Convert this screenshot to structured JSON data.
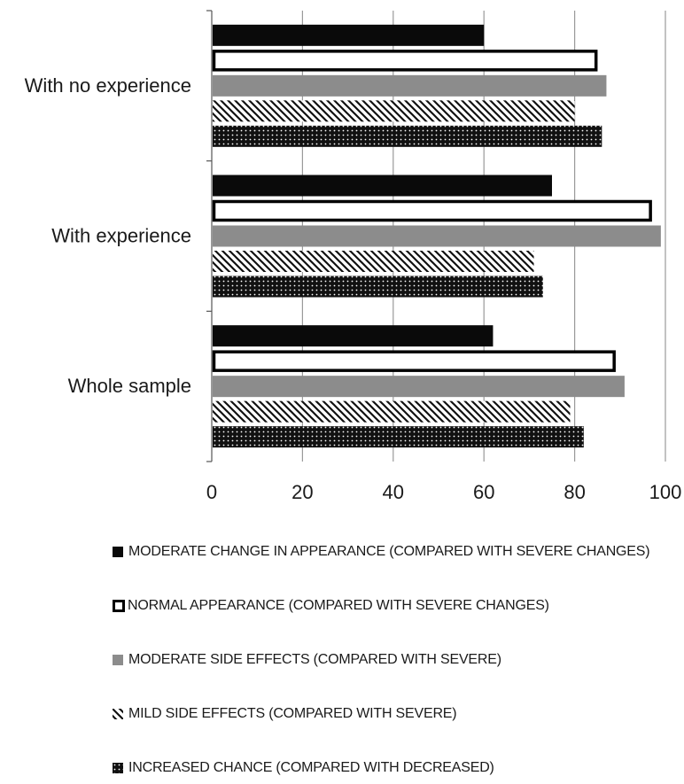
{
  "chart_data": {
    "type": "bar",
    "orientation": "horizontal",
    "categories": [
      "With no experience",
      "With experience",
      "Whole sample"
    ],
    "series": [
      {
        "name": "MODERATE CHANGE IN APPEARANCE (COMPARED WITH SEVERE CHANGES)",
        "values": [
          60,
          75,
          62
        ],
        "fill": "#0a0a0a",
        "pattern": "solid"
      },
      {
        "name": "NORMAL APPEARANCE (COMPARED WITH SEVERE CHANGES)",
        "values": [
          85,
          97,
          89
        ],
        "fill": "#ffffff",
        "pattern": "outline"
      },
      {
        "name": "MODERATE SIDE EFFECTS (COMPARED WITH SEVERE)",
        "values": [
          87,
          99,
          91
        ],
        "fill": "#8c8c8c",
        "pattern": "solid"
      },
      {
        "name": "MILD SIDE EFFECTS (COMPARED WITH SEVERE)",
        "values": [
          80,
          71,
          79
        ],
        "fill": "#ffffff",
        "pattern": "diagonal-stripes"
      },
      {
        "name": "INCREASED CHANCE (COMPARED WITH DECREASED)",
        "values": [
          86,
          73,
          82
        ],
        "fill": "#111111",
        "pattern": "dots"
      }
    ],
    "xlim": [
      0,
      100
    ],
    "xticks": [
      "0",
      "20",
      "40",
      "60",
      "80",
      "100"
    ],
    "xlabel": "",
    "ylabel": "",
    "title": "",
    "grid": "vertical",
    "legend_position": "bottom"
  },
  "colors": {
    "grid": "#9a9a9a",
    "axis": "#555555",
    "text": "#1a1a1a"
  }
}
